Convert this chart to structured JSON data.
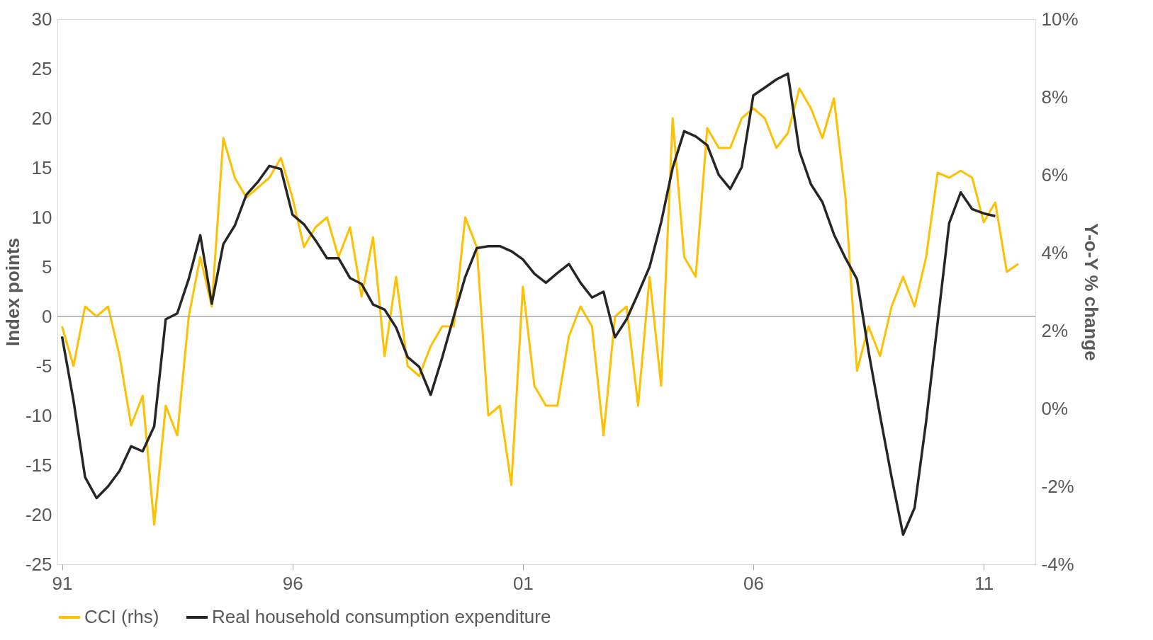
{
  "chart_data": {
    "type": "line",
    "ylabel": "Index points",
    "y2label": "Y-o-Y % change",
    "x": [
      1991,
      1991.25,
      1991.5,
      1991.75,
      1992,
      1992.25,
      1992.5,
      1992.75,
      1993,
      1993.25,
      1993.5,
      1993.75,
      1994,
      1994.25,
      1994.5,
      1994.75,
      1995,
      1995.25,
      1995.5,
      1995.75,
      1996,
      1996.25,
      1996.5,
      1996.75,
      1997,
      1997.25,
      1997.5,
      1997.75,
      1998,
      1998.25,
      1998.5,
      1998.75,
      1999,
      1999.25,
      1999.5,
      1999.75,
      2000,
      2000.25,
      2000.5,
      2000.75,
      2001,
      2001.25,
      2001.5,
      2001.75,
      2002,
      2002.25,
      2002.5,
      2002.75,
      2003,
      2003.25,
      2003.5,
      2003.75,
      2004,
      2004.25,
      2004.5,
      2004.75,
      2005,
      2005.25,
      2005.5,
      2005.75,
      2006,
      2006.25,
      2006.5,
      2006.75,
      2007,
      2007.25,
      2007.5,
      2007.75,
      2008,
      2008.25,
      2008.5,
      2008.75,
      2009,
      2009.25,
      2009.5,
      2009.75,
      2010,
      2010.25,
      2010.5,
      2010.75,
      2011,
      2011.25,
      2011.5,
      2011.75
    ],
    "series": [
      {
        "name": "CCI (rhs)",
        "color": "#ffc000",
        "values": [
          -1,
          -5,
          1,
          0,
          1,
          -4,
          -11,
          -8,
          -21,
          -9,
          -12,
          0,
          6,
          1,
          18,
          14,
          12,
          13,
          14,
          16,
          12,
          7,
          9,
          10,
          6,
          9,
          2,
          8,
          -4,
          4,
          -5,
          -6,
          -3,
          -1,
          -1,
          10,
          7,
          -10,
          -9,
          -17,
          3,
          -7,
          -9,
          -9,
          -2,
          1,
          -1,
          -12,
          0,
          1,
          -9,
          4,
          -7,
          20,
          6,
          4,
          19,
          17,
          17,
          20,
          21,
          20,
          17,
          18.5,
          23,
          21,
          18,
          22,
          12,
          -5.5,
          -1,
          -4,
          1,
          4,
          1,
          6,
          14.5,
          14,
          14.7,
          14,
          9.5,
          11.5,
          4.5,
          5.3
        ]
      },
      {
        "name": "Real household consumption expenditure",
        "color": "#262626",
        "axis": "y2",
        "values": [
          1.85,
          0.2,
          -1.76,
          -2.3,
          -2.0,
          -1.6,
          -0.97,
          -1.1,
          -0.46,
          2.29,
          2.44,
          3.33,
          4.45,
          2.69,
          4.22,
          4.7,
          5.49,
          5.82,
          6.23,
          6.15,
          4.98,
          4.73,
          4.32,
          3.86,
          3.86,
          3.35,
          3.2,
          2.67,
          2.54,
          2.08,
          1.32,
          1.07,
          0.35,
          1.31,
          2.36,
          3.38,
          4.12,
          4.17,
          4.17,
          4.04,
          3.83,
          3.46,
          3.23,
          3.48,
          3.71,
          3.23,
          2.85,
          3.0,
          1.83,
          2.29,
          2.95,
          3.64,
          4.78,
          6.18,
          7.12,
          6.99,
          6.76,
          6.0,
          5.64,
          6.2,
          8.04,
          8.24,
          8.45,
          8.6,
          6.61,
          5.76,
          5.3,
          4.47,
          3.86,
          3.32,
          1.47,
          -0.18,
          -1.76,
          -3.24,
          -2.55,
          -0.33,
          2.21,
          4.76,
          5.55,
          5.12,
          5.01,
          4.94,
          null,
          null
        ]
      }
    ],
    "xlim": [
      1990.9,
      2012.12
    ],
    "xticks": [
      {
        "value": 1991,
        "label": "91"
      },
      {
        "value": 1996,
        "label": "96"
      },
      {
        "value": 2001,
        "label": "01"
      },
      {
        "value": 2006,
        "label": "06"
      },
      {
        "value": 2011,
        "label": "11"
      }
    ],
    "ylim": [
      -25,
      30
    ],
    "yticks": [
      -25,
      -20,
      -15,
      -10,
      -5,
      0,
      5,
      10,
      15,
      20,
      25,
      30
    ],
    "y2lim": [
      -4,
      10
    ],
    "y2ticks": [
      {
        "value": -4,
        "label": "-4%"
      },
      {
        "value": -2,
        "label": "-2%"
      },
      {
        "value": 0,
        "label": "0%"
      },
      {
        "value": 2,
        "label": "2%"
      },
      {
        "value": 4,
        "label": "4%"
      },
      {
        "value": 6,
        "label": "6%"
      },
      {
        "value": 8,
        "label": "8%"
      },
      {
        "value": 10,
        "label": "10%"
      }
    ],
    "ref_lines": [
      {
        "axis": "y",
        "value": 0,
        "color": "#a6a6a6"
      }
    ],
    "grid": false,
    "legend": "bottom",
    "marker": "none",
    "line_style": "solid"
  }
}
